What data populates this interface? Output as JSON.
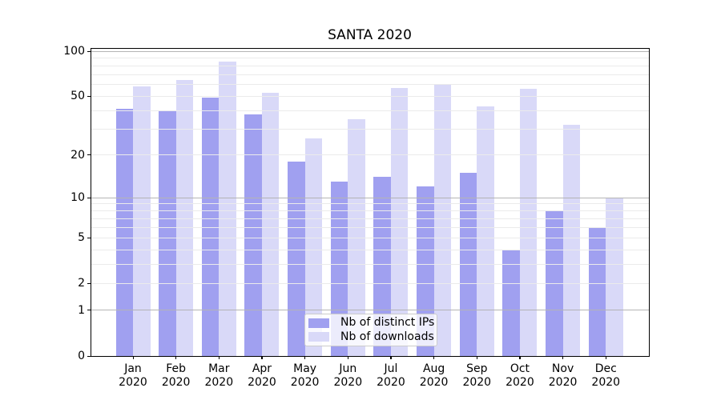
{
  "title": "SANTA 2020",
  "chart_data": {
    "type": "bar",
    "categories": [
      {
        "line1": "Jan",
        "line2": "2020"
      },
      {
        "line1": "Feb",
        "line2": "2020"
      },
      {
        "line1": "Mar",
        "line2": "2020"
      },
      {
        "line1": "Apr",
        "line2": "2020"
      },
      {
        "line1": "May",
        "line2": "2020"
      },
      {
        "line1": "Jun",
        "line2": "2020"
      },
      {
        "line1": "Jul",
        "line2": "2020"
      },
      {
        "line1": "Aug",
        "line2": "2020"
      },
      {
        "line1": "Sep",
        "line2": "2020"
      },
      {
        "line1": "Oct",
        "line2": "2020"
      },
      {
        "line1": "Nov",
        "line2": "2020"
      },
      {
        "line1": "Dec",
        "line2": "2020"
      }
    ],
    "series": [
      {
        "name": "Nb of distinct IPs",
        "color": "#a0a0f0",
        "values": [
          41,
          40,
          49,
          38,
          18,
          13,
          14,
          12,
          15,
          4,
          8,
          6
        ]
      },
      {
        "name": "Nb of downloads",
        "color": "#d9d9f8",
        "values": [
          58,
          64,
          85,
          53,
          26,
          35,
          57,
          60,
          43,
          56,
          32,
          10
        ]
      }
    ],
    "y_ticks": [
      0,
      1,
      2,
      5,
      10,
      20,
      50,
      100
    ],
    "y_minor_gridlines": [
      3,
      4,
      6,
      7,
      8,
      9,
      30,
      40,
      60,
      70,
      80,
      90
    ],
    "y_major_gridlines": [
      1,
      10,
      100
    ],
    "y_scale": "log1p",
    "ylim": [
      0,
      106
    ],
    "grid": true,
    "legend_position": "lower center"
  },
  "colors": {
    "major_grid": "#b4b4b4",
    "minor_grid": "#ebebeb",
    "spine": "#000000",
    "background": "#ffffff"
  }
}
